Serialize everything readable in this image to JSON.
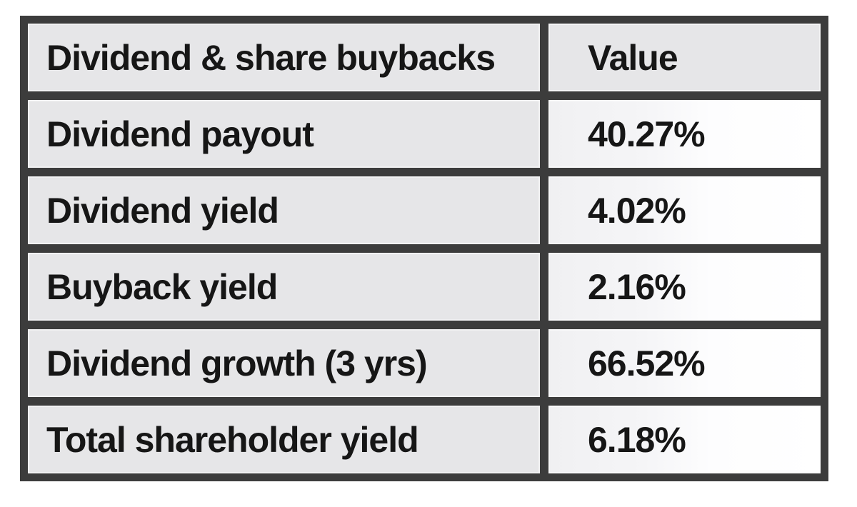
{
  "chart_data": {
    "type": "table",
    "title": "Dividend & share buybacks",
    "columns": [
      "Dividend & share buybacks",
      "Value"
    ],
    "rows": [
      [
        "Dividend payout",
        "40.27%"
      ],
      [
        "Dividend yield",
        "4.02%"
      ],
      [
        "Buyback yield",
        "2.16%"
      ],
      [
        "Dividend growth (3 yrs)",
        "66.52%"
      ],
      [
        "Total shareholder yield",
        "6.18%"
      ]
    ],
    "values_numeric_percent": [
      40.27,
      4.02,
      2.16,
      66.52,
      6.18
    ],
    "layout": {
      "header_row": true,
      "gridlines": true,
      "label_column_align": "left",
      "value_column_align": "left"
    }
  },
  "colors": {
    "frame_border": "#3c3c3c",
    "label_cell_bg": "#e6e6e8",
    "value_cell_bg": "#fbfbfd",
    "text": "#161616",
    "page_bg": "#ffffff"
  }
}
